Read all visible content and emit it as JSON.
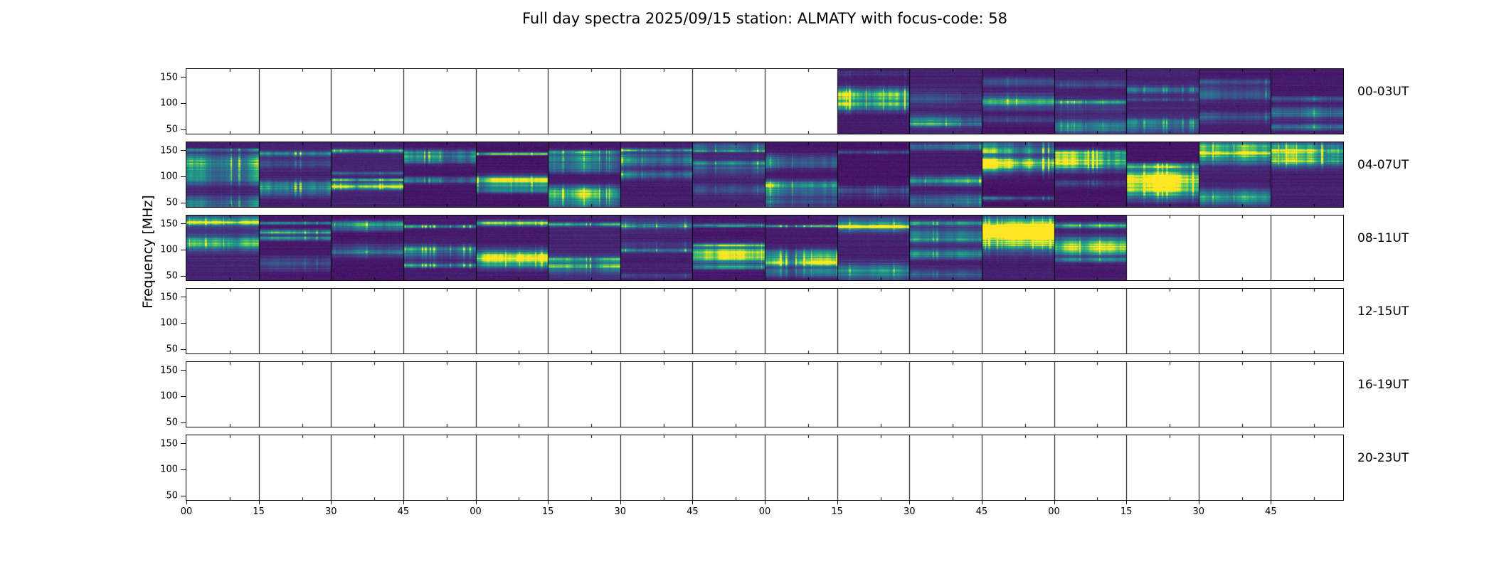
{
  "chart_data": {
    "type": "heatmap",
    "title": "Full day spectra 2025/09/15 station: ALMATY with focus-code: 58",
    "date": "2025/09/15",
    "station": "ALMATY",
    "focus_code": "58",
    "ylabel": "Frequency [MHz]",
    "colormap": "viridis",
    "ylim": [
      42,
      166
    ],
    "y_ticks": [
      150,
      100,
      50
    ],
    "y_tick_labels": [
      "150",
      "100",
      "50"
    ],
    "x_tick_labels": [
      "00",
      "15",
      "30",
      "45",
      "00",
      "15",
      "30",
      "45",
      "00",
      "15",
      "30",
      "45",
      "00",
      "15",
      "30",
      "45"
    ],
    "segments_per_row": 16,
    "minutes_per_segment": 15,
    "legend": "off",
    "grid": "off",
    "rows": [
      {
        "label": "00-03UT",
        "filled": {
          "start_segment": 9,
          "end_segment": 15
        },
        "activity": 0.35,
        "top_band_prob": 0.25,
        "highlights": [
          {
            "segment": 9,
            "band_center": 0.42,
            "band_width": 0.12,
            "intensity": 0.9
          },
          {
            "segment": 9,
            "band_center": 0.55,
            "band_width": 0.06,
            "intensity": 0.5
          },
          {
            "segment": 14,
            "band_center": 0.38,
            "band_width": 0.09,
            "intensity": 0.45
          }
        ]
      },
      {
        "label": "04-07UT",
        "filled": {
          "start_segment": 0,
          "end_segment": 15
        },
        "activity": 0.75,
        "top_band_prob": 0.55,
        "highlights": [
          {
            "segment": 0,
            "band_center": 0.45,
            "band_width": 0.16,
            "intensity": 0.6
          },
          {
            "segment": 8,
            "band_center": 0.3,
            "band_width": 0.1,
            "intensity": 0.55
          },
          {
            "segment": 11,
            "band_center": 0.35,
            "band_width": 0.12,
            "intensity": 0.65
          },
          {
            "segment": 13,
            "band_center": 0.66,
            "band_width": 0.17,
            "intensity": 1.0
          },
          {
            "segment": 15,
            "band_center": 0.25,
            "band_width": 0.12,
            "intensity": 0.55
          }
        ]
      },
      {
        "label": "08-11UT",
        "filled": {
          "start_segment": 0,
          "end_segment": 12
        },
        "activity": 0.65,
        "top_band_prob": 0.9,
        "highlights": [
          {
            "segment": 11,
            "band_center": 0.22,
            "band_width": 0.18,
            "intensity": 0.9
          },
          {
            "segment": 12,
            "band_center": 0.5,
            "band_width": 0.12,
            "intensity": 0.5
          }
        ]
      },
      {
        "label": "12-15UT",
        "filled": null,
        "activity": 0,
        "top_band_prob": 0,
        "highlights": []
      },
      {
        "label": "16-19UT",
        "filled": null,
        "activity": 0,
        "top_band_prob": 0,
        "highlights": []
      },
      {
        "label": "20-23UT",
        "filled": null,
        "activity": 0,
        "top_band_prob": 0,
        "highlights": []
      }
    ]
  },
  "colors": {
    "background": "#ffffff",
    "axis": "#000000",
    "spectrogram_dark": "#440154",
    "spectrogram_mid": "#21918c",
    "spectrogram_bright": "#fde725"
  }
}
